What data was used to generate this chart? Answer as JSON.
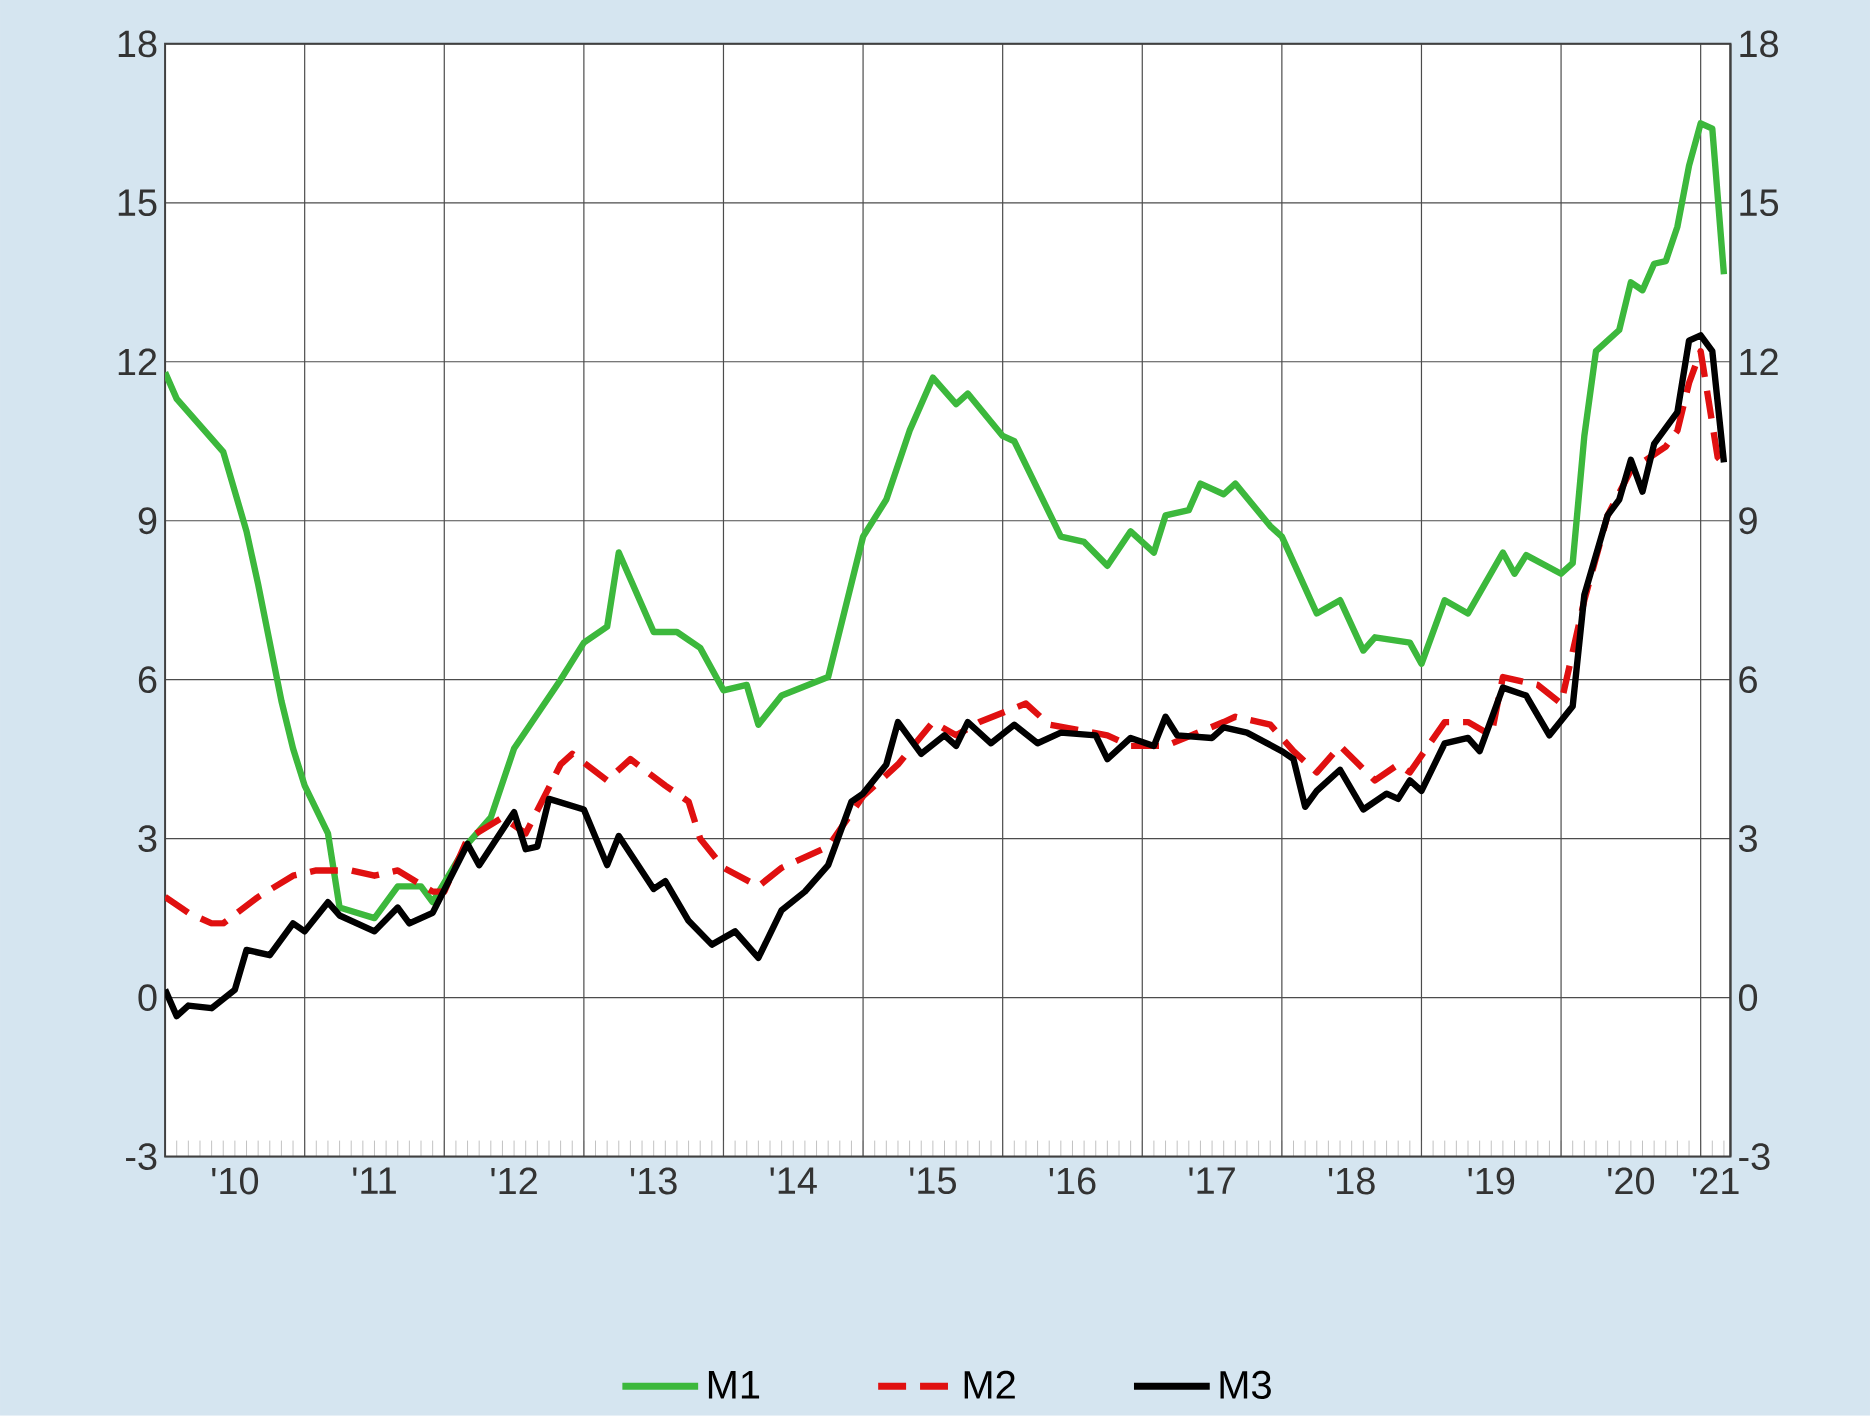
{
  "chart_data": {
    "type": "line",
    "xlim": [
      "2010-01",
      "2021-03-18"
    ],
    "ylim": [
      -3,
      18
    ],
    "y2lim": [
      -3,
      18
    ],
    "yticks": [
      -3,
      0,
      3,
      6,
      9,
      12,
      15,
      18
    ],
    "y2ticks": [
      -3,
      0,
      3,
      6,
      9,
      12,
      15,
      18
    ],
    "xticks": [
      {
        "value": "2011-01",
        "label": null
      },
      {
        "value": "2012-01",
        "label": null
      },
      {
        "value": "2013-01",
        "label": null
      },
      {
        "value": "2014-01",
        "label": null
      },
      {
        "value": "2015-01",
        "label": null
      },
      {
        "value": "2016-01",
        "label": null
      },
      {
        "value": "2017-01",
        "label": null
      },
      {
        "value": "2018-01",
        "label": null
      },
      {
        "value": "2019-01",
        "label": null
      },
      {
        "value": "2020-01",
        "label": null
      },
      {
        "value": "2021-01",
        "label": null
      },
      {
        "value": "2010-07",
        "label": "'10"
      },
      {
        "value": "2011-07",
        "label": "'11"
      },
      {
        "value": "2012-07",
        "label": "'12"
      },
      {
        "value": "2013-07",
        "label": "'13"
      },
      {
        "value": "2014-07",
        "label": "'14"
      },
      {
        "value": "2015-07",
        "label": "'15"
      },
      {
        "value": "2016-07",
        "label": "'16"
      },
      {
        "value": "2017-07",
        "label": "'17"
      },
      {
        "value": "2018-07",
        "label": "'18"
      },
      {
        "value": "2019-07",
        "label": "'19"
      },
      {
        "value": "2020-07",
        "label": "'20"
      },
      {
        "value": "2021-02-10",
        "label": "'21"
      }
    ],
    "grid": true,
    "legend": "bottom",
    "series": [
      {
        "name": "M1",
        "color": "#3cb83c",
        "line_style": "solid",
        "x": [
          "2010-01",
          "2010-02",
          "2010-04",
          "2010-06",
          "2010-08",
          "2010-09",
          "2010-11",
          "2010-12",
          "2011-01",
          "2011-03",
          "2011-04",
          "2011-07",
          "2011-09",
          "2011-11",
          "2011-12",
          "2012-03",
          "2012-05",
          "2012-07",
          "2012-11",
          "2013-01",
          "2013-03",
          "2013-04",
          "2013-07",
          "2013-09",
          "2013-11",
          "2014-01",
          "2014-03",
          "2014-04",
          "2014-06",
          "2014-10",
          "2015-01",
          "2015-03",
          "2015-05",
          "2015-07",
          "2015-09",
          "2015-10",
          "2016-01",
          "2016-02",
          "2016-06",
          "2016-08",
          "2016-10",
          "2016-12",
          "2017-02",
          "2017-03",
          "2017-05",
          "2017-06",
          "2017-08",
          "2017-09",
          "2017-12",
          "2018-01",
          "2018-04",
          "2018-06",
          "2018-08",
          "2018-09",
          "2018-12",
          "2019-01",
          "2019-03",
          "2019-05",
          "2019-08",
          "2019-09",
          "2019-10",
          "2020-01",
          "2020-02",
          "2020-03",
          "2020-04",
          "2020-06",
          "2020-07",
          "2020-08",
          "2020-09",
          "2020-10",
          "2020-11",
          "2020-12",
          "2021-01",
          "2021-02",
          "2021-03"
        ],
        "values": [
          11.8,
          11.3,
          10.8,
          10.3,
          8.8,
          7.8,
          5.6,
          4.7,
          4.0,
          3.1,
          1.7,
          1.5,
          2.1,
          2.1,
          1.8,
          2.9,
          3.4,
          4.7,
          6.0,
          6.7,
          7.0,
          8.4,
          6.9,
          6.9,
          6.6,
          5.8,
          5.9,
          5.15,
          5.7,
          6.05,
          8.7,
          9.4,
          10.7,
          11.7,
          11.2,
          11.4,
          10.6,
          10.5,
          8.7,
          8.6,
          8.15,
          8.8,
          8.4,
          9.1,
          9.2,
          9.7,
          9.5,
          9.7,
          8.9,
          8.7,
          7.25,
          7.5,
          6.55,
          6.8,
          6.7,
          6.3,
          7.5,
          7.25,
          8.4,
          8.0,
          8.35,
          8.0,
          8.2,
          10.6,
          12.2,
          12.6,
          13.5,
          13.35,
          13.85,
          13.9,
          14.55,
          15.7,
          16.5,
          16.4,
          13.65
        ]
      },
      {
        "name": "M2",
        "color": "#e01010",
        "line_style": "dashed",
        "x": [
          "2010-01",
          "2010-03",
          "2010-05",
          "2010-06",
          "2010-09",
          "2010-12",
          "2011-02",
          "2011-05",
          "2011-07",
          "2011-09",
          "2011-12",
          "2012-01",
          "2012-03",
          "2012-06",
          "2012-08",
          "2012-11",
          "2012-12",
          "2013-03",
          "2013-05",
          "2013-08",
          "2013-10",
          "2013-11",
          "2014-01",
          "2014-04",
          "2014-06",
          "2014-10",
          "2015-01",
          "2015-04",
          "2015-07",
          "2015-09",
          "2015-11",
          "2016-03",
          "2016-05",
          "2016-10",
          "2016-12",
          "2017-03",
          "2017-08",
          "2017-09",
          "2017-12",
          "2018-02",
          "2018-04",
          "2018-06",
          "2018-09",
          "2018-11",
          "2018-12",
          "2019-03",
          "2019-05",
          "2019-07",
          "2019-08",
          "2019-11",
          "2020-01",
          "2020-03",
          "2020-05",
          "2020-07",
          "2020-10",
          "2020-11",
          "2020-12",
          "2021-01",
          "2021-02-15",
          "2021-03-10"
        ],
        "values": [
          1.9,
          1.6,
          1.4,
          1.4,
          1.9,
          2.3,
          2.4,
          2.4,
          2.3,
          2.4,
          2.0,
          2.0,
          3.0,
          3.4,
          3.1,
          4.4,
          4.6,
          4.1,
          4.5,
          4.0,
          3.7,
          3.0,
          2.45,
          2.1,
          2.45,
          2.85,
          3.8,
          4.4,
          5.2,
          4.95,
          5.2,
          5.55,
          5.15,
          4.95,
          4.75,
          4.75,
          5.2,
          5.3,
          5.15,
          4.65,
          4.25,
          4.75,
          4.1,
          4.4,
          4.25,
          5.2,
          5.2,
          4.95,
          6.05,
          5.9,
          5.55,
          7.5,
          9.1,
          9.95,
          10.4,
          10.7,
          11.6,
          12.2,
          10.2,
          10.0
        ]
      },
      {
        "name": "M3",
        "color": "#000000",
        "line_style": "solid",
        "x": [
          "2010-01",
          "2010-02",
          "2010-03",
          "2010-05",
          "2010-07",
          "2010-08",
          "2010-10",
          "2010-12",
          "2011-01",
          "2011-03",
          "2011-04",
          "2011-07",
          "2011-09",
          "2011-10",
          "2011-12",
          "2012-03",
          "2012-04",
          "2012-07",
          "2012-08",
          "2012-09",
          "2012-10",
          "2013-01",
          "2013-03",
          "2013-04",
          "2013-07",
          "2013-08",
          "2013-10",
          "2013-12",
          "2014-02",
          "2014-04",
          "2014-06",
          "2014-08",
          "2014-10",
          "2014-12",
          "2015-01",
          "2015-03",
          "2015-04",
          "2015-06",
          "2015-08",
          "2015-09",
          "2015-10",
          "2015-12",
          "2016-02",
          "2016-04",
          "2016-06",
          "2016-09",
          "2016-10",
          "2016-12",
          "2017-02",
          "2017-03",
          "2017-04",
          "2017-07",
          "2017-08",
          "2017-10",
          "2018-01",
          "2018-02",
          "2018-03",
          "2018-04",
          "2018-06",
          "2018-08",
          "2018-10",
          "2018-11",
          "2018-12",
          "2019-01",
          "2019-03",
          "2019-05",
          "2019-06",
          "2019-08",
          "2019-10",
          "2019-12",
          "2020-02",
          "2020-03",
          "2020-05",
          "2020-06",
          "2020-07",
          "2020-08",
          "2020-09",
          "2020-11",
          "2020-12",
          "2021-01",
          "2021-02",
          "2021-03"
        ],
        "values": [
          0.15,
          -0.35,
          -0.15,
          -0.2,
          0.15,
          0.9,
          0.8,
          1.4,
          1.25,
          1.8,
          1.55,
          1.25,
          1.7,
          1.4,
          1.6,
          2.9,
          2.5,
          3.5,
          2.8,
          2.85,
          3.75,
          3.55,
          2.5,
          3.05,
          2.05,
          2.2,
          1.45,
          1.0,
          1.25,
          0.75,
          1.65,
          2.0,
          2.5,
          3.7,
          3.85,
          4.4,
          5.2,
          4.6,
          4.95,
          4.75,
          5.2,
          4.8,
          5.15,
          4.8,
          5.0,
          4.95,
          4.5,
          4.9,
          4.75,
          5.3,
          4.95,
          4.9,
          5.1,
          5.0,
          4.65,
          4.5,
          3.6,
          3.9,
          4.3,
          3.55,
          3.85,
          3.75,
          4.1,
          3.9,
          4.8,
          4.9,
          4.65,
          5.85,
          5.7,
          4.95,
          5.5,
          7.6,
          9.1,
          9.4,
          10.15,
          9.55,
          10.45,
          11.05,
          12.4,
          12.5,
          12.2,
          10.1
        ]
      }
    ]
  }
}
